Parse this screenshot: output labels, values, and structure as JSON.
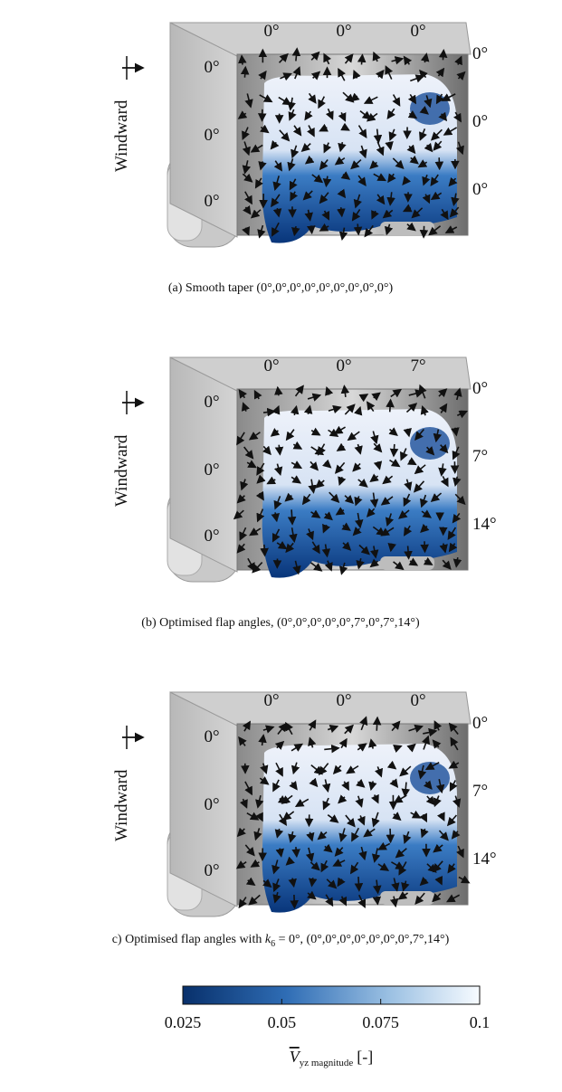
{
  "panels": [
    {
      "caption": "(a) Smooth taper (0°,0°,0°,0°,0°,0°,0°,0°,0°)",
      "windward": "Windward",
      "top_angles": [
        "0°",
        "0°",
        "0°"
      ],
      "left_angles": [
        "0°",
        "0°",
        "0°"
      ],
      "right_angles": [
        "0°",
        "0°",
        "0°"
      ]
    },
    {
      "caption": "(b) Optimised flap angles, (0°,0°,0°,0°,0°,7°,0°,7°,14°)",
      "windward": "Windward",
      "top_angles": [
        "0°",
        "0°",
        "7°"
      ],
      "left_angles": [
        "0°",
        "0°",
        "0°"
      ],
      "right_angles": [
        "0°",
        "7°",
        "14°"
      ]
    },
    {
      "caption_parts": [
        "c) Optimised flap angles with ",
        "k",
        "6",
        " = 0°, (0°,0°,0°,0°,0°,0°,0°,7°,14°)"
      ],
      "windward": "Windward",
      "top_angles": [
        "0°",
        "0°",
        "0°"
      ],
      "left_angles": [
        "0°",
        "0°",
        "0°"
      ],
      "right_angles": [
        "0°",
        "7°",
        "14°"
      ]
    }
  ],
  "colorbar": {
    "range": [
      0.025,
      0.1
    ],
    "ticks": [
      0.025,
      0.05,
      0.075,
      0.1
    ],
    "label_symbol": "V",
    "label_subscript": "yz magnitude",
    "label_unit": "[-]"
  }
}
